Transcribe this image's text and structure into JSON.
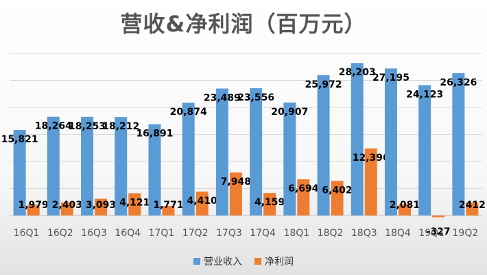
{
  "chart_data": {
    "type": "bar",
    "title": "营收&净利润（百万元）",
    "categories": [
      "16Q1",
      "16Q2",
      "16Q3",
      "16Q4",
      "17Q1",
      "17Q2",
      "17Q3",
      "17Q4",
      "18Q1",
      "18Q2",
      "18Q3",
      "18Q4",
      "19Q1",
      "19Q2"
    ],
    "series": [
      {
        "name": "营业收入",
        "color": "#5b9bd5",
        "values": [
          15821,
          18264,
          18253,
          18212,
          16891,
          20874,
          23489,
          23556,
          20907,
          25972,
          28203,
          27195,
          24123,
          26326
        ],
        "labels": [
          "15,821",
          "18,264",
          "18,253",
          "18,212",
          "16,891",
          "20,874",
          "23,489",
          "23,556",
          "20,907",
          "25,972",
          "28,203",
          "27,195",
          "24,123",
          "26,326"
        ]
      },
      {
        "name": "净利润",
        "color": "#ed7d31",
        "values": [
          1979,
          2403,
          3093,
          4121,
          1771,
          4410,
          7948,
          4159,
          6694,
          6402,
          12396,
          2081,
          -327,
          2412
        ],
        "labels": [
          "1,979",
          "2,403",
          "3,093",
          "4,121",
          "1,771",
          "4,410",
          "7,948",
          "4,159",
          "6,694",
          "6,402",
          "12,396",
          "2,081",
          "-327",
          "2412"
        ]
      }
    ],
    "ylim": [
      0,
      30000
    ],
    "grid": true,
    "legend": "bottom"
  }
}
